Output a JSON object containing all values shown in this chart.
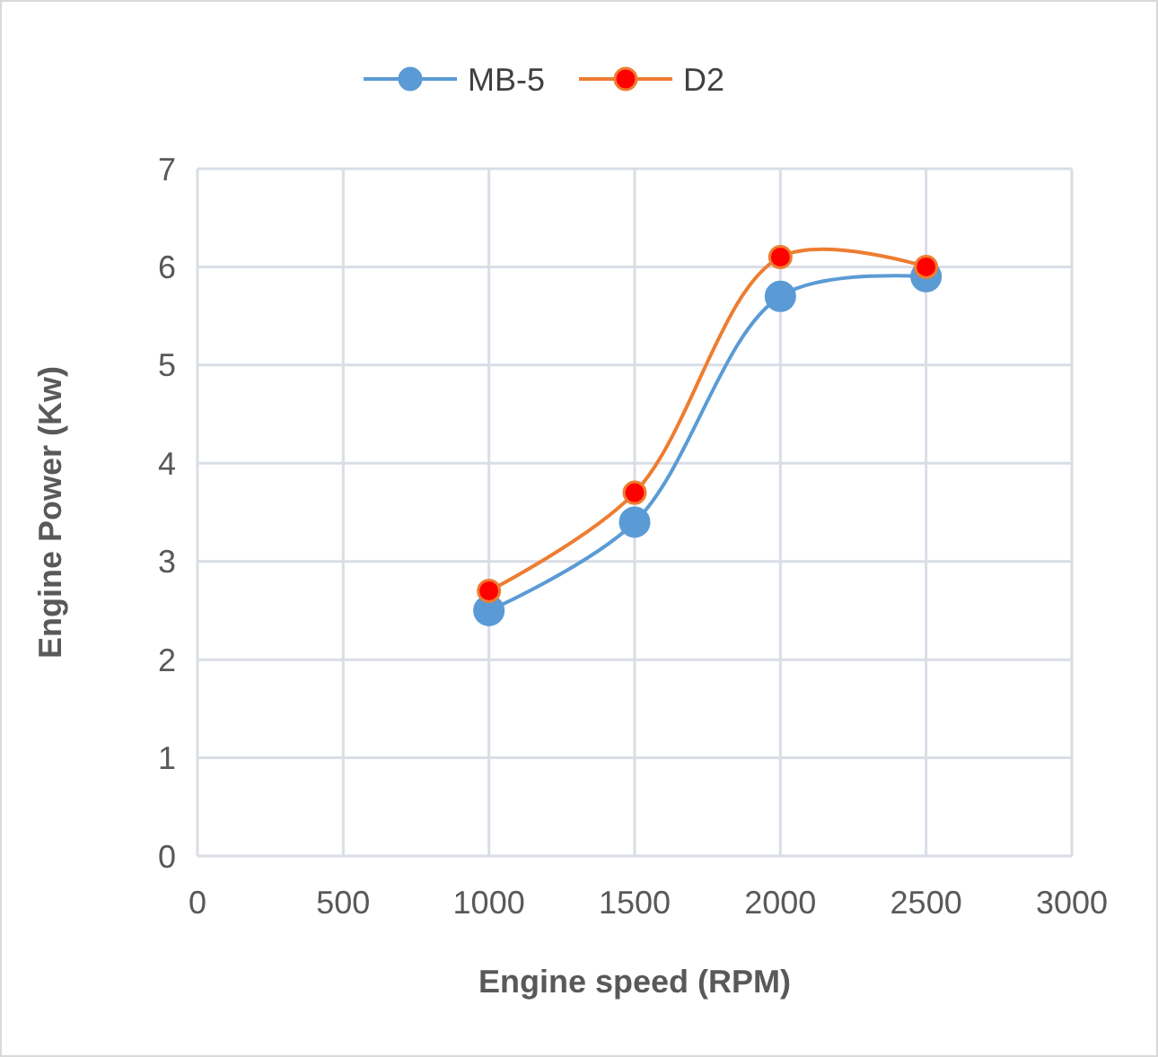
{
  "chart_data": {
    "type": "line",
    "xlabel": "Engine speed (RPM)",
    "ylabel": "Engine Power (Kw)",
    "x": [
      1000,
      1500,
      2000,
      2500
    ],
    "series": [
      {
        "name": "MB-5",
        "color": "#5b9bd5",
        "values": [
          2.5,
          3.4,
          5.7,
          5.9
        ]
      },
      {
        "name": "D2",
        "color": "#ed7d31",
        "values": [
          2.7,
          3.7,
          6.1,
          6.0
        ]
      }
    ],
    "xlim": [
      0,
      3000
    ],
    "xticks": [
      0,
      500,
      1000,
      1500,
      2000,
      2500,
      3000
    ],
    "ylim": [
      0,
      7
    ],
    "yticks": [
      0,
      1,
      2,
      3,
      4,
      5,
      6,
      7
    ],
    "grid": true,
    "legend": "top",
    "marker": "circle",
    "line_style": "solid"
  }
}
